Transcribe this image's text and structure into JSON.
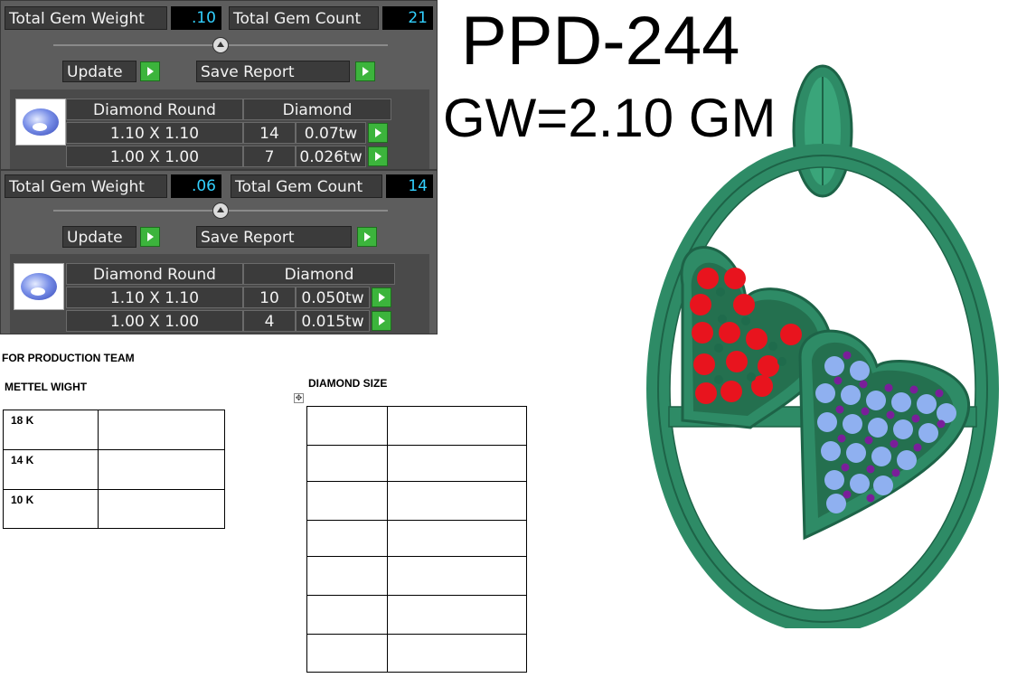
{
  "title": "PPD-244",
  "subtitle": "GW=2.10 GM",
  "panel1": {
    "total_weight_label": "Total Gem Weight",
    "total_weight_value": ".10",
    "total_count_label": "Total Gem Count",
    "total_count_value": "21",
    "update_label": "Update",
    "save_report_label": "Save Report",
    "header_shape": "Diamond Round",
    "header_type": "Diamond",
    "rows": [
      {
        "size": "1.10 X 1.10",
        "count": "14",
        "weight": "0.07tw"
      },
      {
        "size": "1.00 X 1.00",
        "count": "7",
        "weight": "0.026tw"
      }
    ]
  },
  "panel2": {
    "total_weight_label": "Total Gem Weight",
    "total_weight_value": ".06",
    "total_count_label": "Total Gem Count",
    "total_count_value": "14",
    "update_label": "Update",
    "save_report_label": "Save Report",
    "header_shape": "Diamond Round",
    "header_type": "Diamond",
    "rows": [
      {
        "size": "1.10 X 1.10",
        "count": "10",
        "weight": "0.050tw"
      },
      {
        "size": "1.00 X 1.00",
        "count": "4",
        "weight": "0.015tw"
      }
    ]
  },
  "document": {
    "production_heading": "FOR PRODUCTION TEAM",
    "metal_heading": "METTEL WIGHT",
    "metal_rows": [
      "18 K",
      "14 K",
      "10 K"
    ],
    "diamond_heading": "DIAMOND SIZE"
  },
  "colors": {
    "metal_green": "#2e8b66",
    "ruby": "#e8141e",
    "sapphire": "#8fb0f0",
    "amethyst": "#7a1e9a",
    "accent_value": "#32d0ff",
    "go_button": "#3cb43c"
  }
}
